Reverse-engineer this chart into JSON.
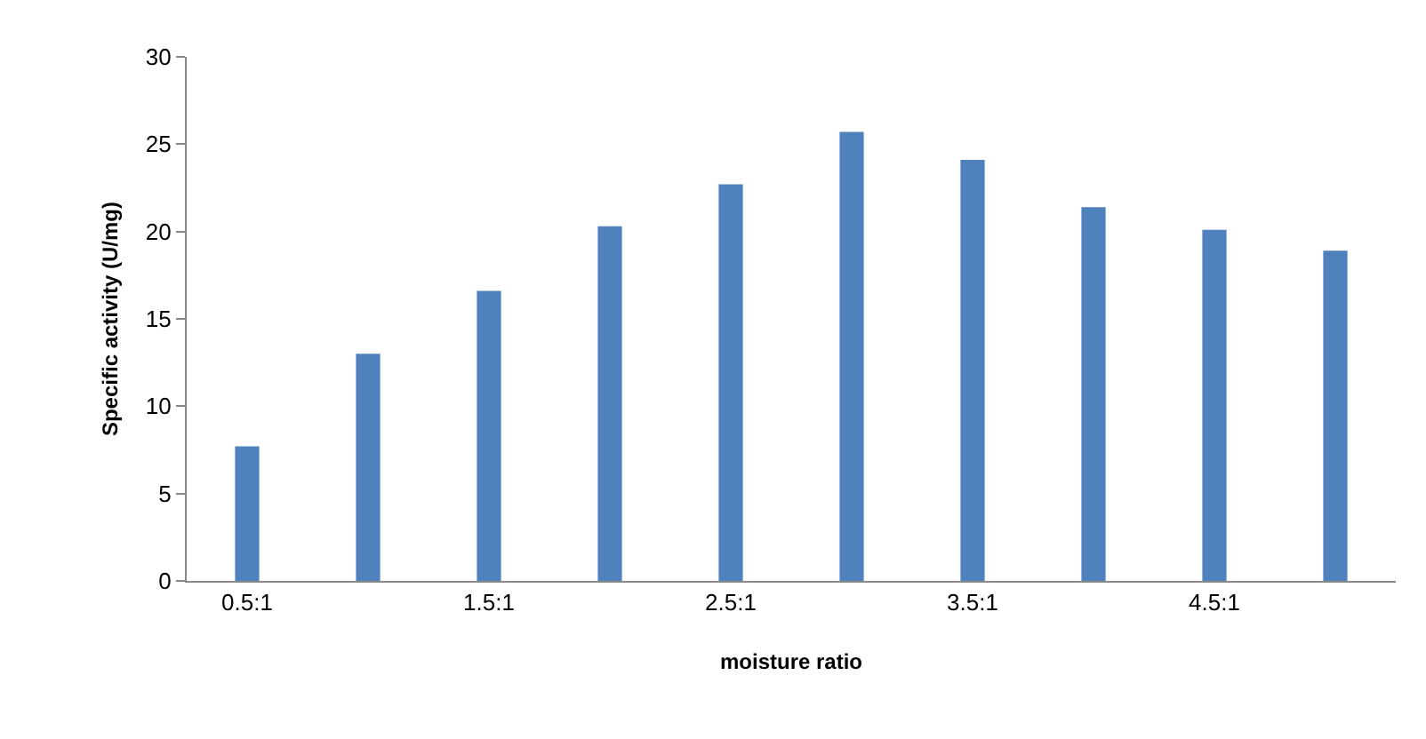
{
  "chart_data": {
    "type": "bar",
    "xlabel": "moisture ratio",
    "ylabel": "Specific activity (U/mg)",
    "categories": [
      "0.5:1",
      null,
      "1.5:1",
      null,
      "2.5:1",
      null,
      "3.5:1",
      null,
      "4.5:1",
      null
    ],
    "values": [
      7.7,
      13.0,
      16.6,
      20.3,
      22.7,
      25.7,
      24.1,
      21.4,
      20.1,
      18.9
    ],
    "color": "#4f81bd",
    "ylim": [
      0,
      30
    ],
    "yticks": [
      0,
      5,
      10,
      15,
      20,
      25,
      30
    ],
    "grid": false
  }
}
